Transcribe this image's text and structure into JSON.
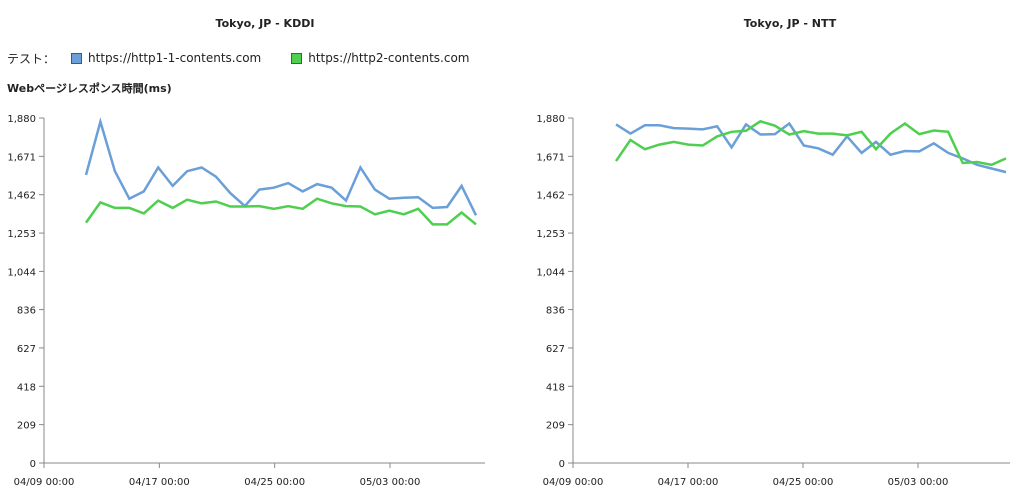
{
  "legend": {
    "label": "テスト：",
    "items": [
      {
        "label": "https://http1-1-contents.com",
        "color": "#6a9fd8"
      },
      {
        "label": "https://http2-contents.com",
        "color": "#4fcf4f"
      }
    ]
  },
  "metric_title": "Webページレスポンス時間(ms)",
  "chart_data": [
    {
      "type": "line",
      "title": "Tokyo, JP - KDDI",
      "xlabel": "",
      "ylabel": "Webページレスポンス時間(ms)",
      "ylim": [
        0,
        1880
      ],
      "yticks": [
        "1,880",
        "1,671",
        "1,462",
        "1,253",
        "1,044",
        "836",
        "627",
        "418",
        "209",
        "0"
      ],
      "xticks": [
        "04/09 00:00",
        "04/17 00:00",
        "04/25 00:00",
        "05/03 00:00"
      ],
      "grid": false,
      "x": [
        "04/12",
        "04/13",
        "04/14",
        "04/15",
        "04/16",
        "04/17",
        "04/18",
        "04/19",
        "04/20",
        "04/21",
        "04/22",
        "04/23",
        "04/24",
        "04/25",
        "04/26",
        "04/27",
        "04/28",
        "04/29",
        "04/30",
        "05/01",
        "05/02",
        "05/03",
        "05/04",
        "05/05",
        "05/06",
        "05/07",
        "05/08",
        "05/09"
      ],
      "series": [
        {
          "name": "https://http1-1-contents.com",
          "color": "#6a9fd8",
          "values": [
            1570,
            1860,
            1590,
            1440,
            1480,
            1610,
            1510,
            1590,
            1610,
            1560,
            1470,
            1400,
            1490,
            1500,
            1525,
            1480,
            1520,
            1500,
            1430,
            1610,
            1490,
            1440,
            1445,
            1448,
            1390,
            1395,
            1510,
            1350
          ]
        },
        {
          "name": "https://http2-contents.com",
          "color": "#4fcf4f",
          "values": [
            1310,
            1420,
            1390,
            1390,
            1360,
            1430,
            1390,
            1435,
            1415,
            1425,
            1398,
            1398,
            1400,
            1385,
            1400,
            1385,
            1440,
            1415,
            1400,
            1398,
            1355,
            1375,
            1355,
            1385,
            1300,
            1300,
            1365,
            1300
          ]
        }
      ]
    },
    {
      "type": "line",
      "title": "Tokyo, JP - NTT",
      "xlabel": "",
      "ylabel": "",
      "ylim": [
        0,
        1880
      ],
      "yticks": [
        "1,880",
        "1,671",
        "1,462",
        "1,253",
        "1,044",
        "836",
        "627",
        "418",
        "209",
        "0"
      ],
      "xticks": [
        "04/09 00:00",
        "04/17 00:00",
        "04/25 00:00",
        "05/03 00:00"
      ],
      "grid": false,
      "x": [
        "04/12",
        "04/13",
        "04/14",
        "04/15",
        "04/16",
        "04/17",
        "04/18",
        "04/19",
        "04/20",
        "04/21",
        "04/22",
        "04/23",
        "04/24",
        "04/25",
        "04/26",
        "04/27",
        "04/28",
        "04/29",
        "04/30",
        "05/01",
        "05/02",
        "05/03",
        "05/04",
        "05/05",
        "05/06",
        "05/07",
        "05/08",
        "05/09"
      ],
      "series": [
        {
          "name": "https://http1-1-contents.com",
          "color": "#6a9fd8",
          "values": [
            1845,
            1795,
            1840,
            1840,
            1825,
            1822,
            1818,
            1835,
            1720,
            1845,
            1790,
            1792,
            1850,
            1730,
            1715,
            1680,
            1780,
            1690,
            1750,
            1680,
            1700,
            1698,
            1742,
            1690,
            1660,
            1625,
            1605,
            1585
          ]
        },
        {
          "name": "https://http2-contents.com",
          "color": "#4fcf4f",
          "values": [
            1645,
            1760,
            1710,
            1735,
            1750,
            1735,
            1730,
            1780,
            1805,
            1810,
            1862,
            1838,
            1790,
            1808,
            1795,
            1795,
            1785,
            1805,
            1710,
            1795,
            1850,
            1792,
            1812,
            1805,
            1635,
            1640,
            1625,
            1660
          ]
        }
      ]
    }
  ]
}
